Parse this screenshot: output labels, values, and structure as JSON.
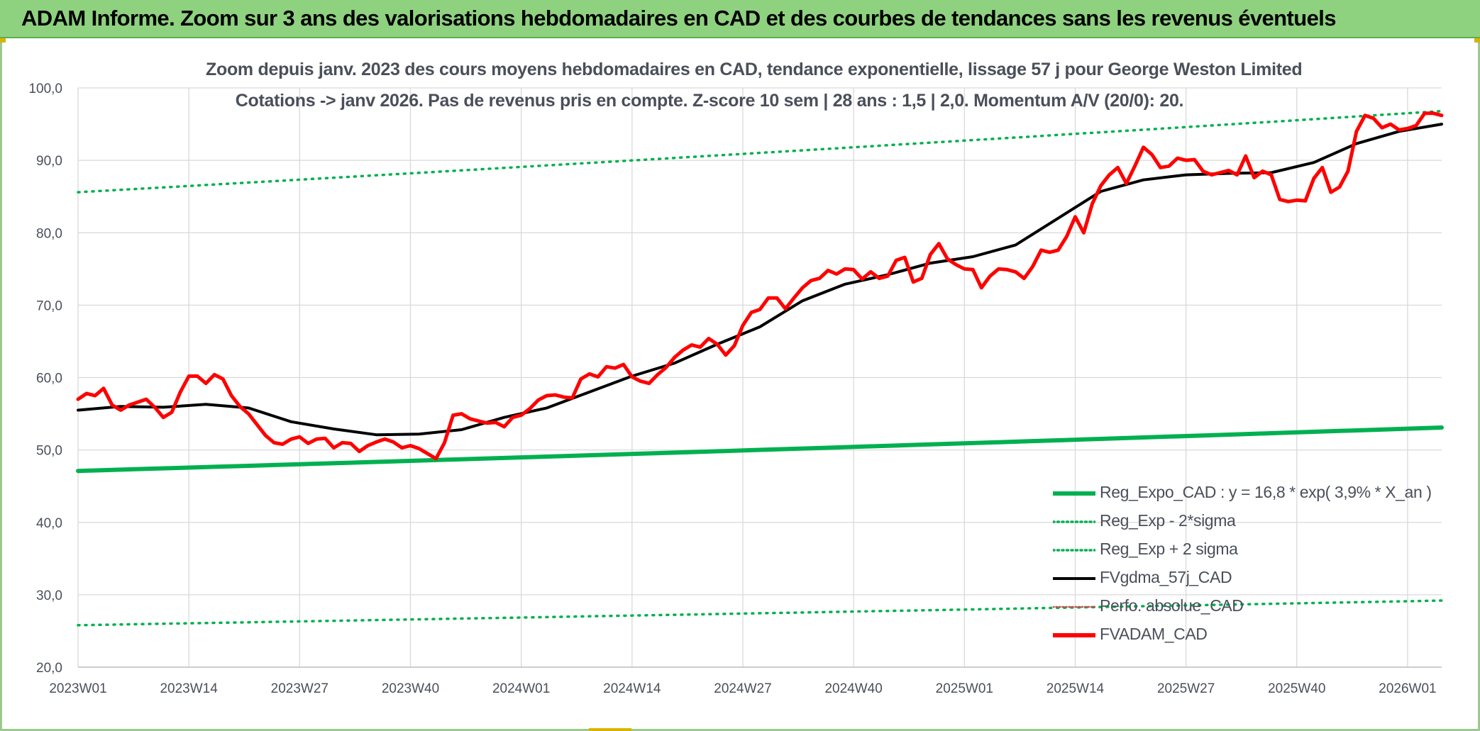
{
  "banner": {
    "title": "ADAM Informe. Zoom sur 3 ans des valorisations hebdomadaires en CAD et des courbes de tendances sans les revenus éventuels"
  },
  "colors": {
    "banner": "#8ed27f",
    "reg_expo": "#00b050",
    "sigma": "#00b050",
    "fvgdma": "#000000",
    "perfo": "#c0504d",
    "fvadam": "#ff0000",
    "grid": "#d9d9d9"
  },
  "chart_data": {
    "type": "line",
    "title": "Zoom depuis janv. 2023 des cours moyens hebdomadaires en CAD, tendance exponentielle, lissage 57 j pour George Weston Limited",
    "subtitle": "Cotations -> janv 2026. Pas de revenus pris en compte. Z-score 10 sem | 28 ans : 1,5 | 2,0. Momentum A/V (20/0): 20.",
    "xlabel": "",
    "ylabel": "",
    "ylim": [
      20,
      100
    ],
    "yticks": [
      "20,0",
      "30,0",
      "40,0",
      "50,0",
      "60,0",
      "70,0",
      "80,0",
      "90,0",
      "100,0"
    ],
    "x_range_weeks": [
      0,
      160
    ],
    "xticks": [
      "2023W01",
      "2023W14",
      "2023W27",
      "2023W40",
      "2024W01",
      "2024W14",
      "2024W27",
      "2024W40",
      "2025W01",
      "2025W14",
      "2025W27",
      "2025W40",
      "2026W01"
    ],
    "grid": true,
    "legend_position": "bottom-right",
    "series": [
      {
        "name": "Reg_Expo_CAD : y = 16,8 * exp( 3,9% *  X_an )",
        "style": "solid-thick",
        "x": [
          0,
          160
        ],
        "y": [
          47.1,
          53.1
        ]
      },
      {
        "name": "Reg_Exp - 2*sigma",
        "style": "dotted",
        "x": [
          0,
          160
        ],
        "y": [
          25.8,
          29.2
        ]
      },
      {
        "name": "Reg_Exp + 2 sigma",
        "style": "dotted",
        "x": [
          0,
          160
        ],
        "y": [
          85.6,
          96.8
        ]
      },
      {
        "name": "FVgdma_57j_CAD",
        "style": "solid",
        "x": [
          0,
          5,
          10,
          15,
          20,
          25,
          30,
          35,
          40,
          45,
          50,
          55,
          60,
          65,
          70,
          75,
          80,
          85,
          90,
          95,
          100,
          105,
          110,
          115,
          120,
          125,
          130,
          135,
          140,
          145,
          150,
          155,
          160
        ],
        "y": [
          55.5,
          56.0,
          55.9,
          56.3,
          55.8,
          53.9,
          52.9,
          52.1,
          52.2,
          52.8,
          54.5,
          55.8,
          58.0,
          60.2,
          62.0,
          64.6,
          67.0,
          70.6,
          72.9,
          74.2,
          75.8,
          76.7,
          78.3,
          82.0,
          85.7,
          87.3,
          88.0,
          88.2,
          88.3,
          89.7,
          92.3,
          94.0,
          95.0
        ]
      },
      {
        "name": "Perfo. absolue_CAD",
        "style": "dotted-thin",
        "x": [],
        "y": []
      },
      {
        "name": "FVADAM_CAD",
        "style": "solid-thick",
        "x": [
          0,
          1,
          2,
          3,
          4,
          5,
          6,
          7,
          8,
          9,
          10,
          11,
          12,
          13,
          14,
          15,
          16,
          17,
          18,
          19,
          20,
          21,
          22,
          23,
          24,
          25,
          26,
          27,
          28,
          29,
          30,
          31,
          32,
          33,
          34,
          35,
          36,
          37,
          38,
          39,
          40,
          41,
          42,
          43,
          44,
          45,
          46,
          47,
          48,
          49,
          50,
          51,
          52,
          53,
          54,
          55,
          56,
          57,
          58,
          59,
          60,
          61,
          62,
          63,
          64,
          65,
          66,
          67,
          68,
          69,
          70,
          71,
          72,
          73,
          74,
          75,
          76,
          77,
          78,
          79,
          80,
          81,
          82,
          83,
          84,
          85,
          86,
          87,
          88,
          89,
          90,
          91,
          92,
          93,
          94,
          95,
          96,
          97,
          98,
          99,
          100,
          101,
          102,
          103,
          104,
          105,
          106,
          107,
          108,
          109,
          110,
          111,
          112,
          113,
          114,
          115,
          116,
          117,
          118,
          119,
          120,
          121,
          122,
          123,
          124,
          125,
          126,
          127,
          128,
          129,
          130,
          131,
          132,
          133,
          134,
          135,
          136,
          137,
          138,
          139,
          140,
          141,
          142,
          143,
          144,
          145,
          146,
          147,
          148,
          149,
          150,
          151,
          152,
          153,
          154,
          155,
          156,
          157,
          158,
          159,
          160
        ],
        "y": [
          57.0,
          57.8,
          57.5,
          58.5,
          56.2,
          55.5,
          56.2,
          56.6,
          57.0,
          55.9,
          54.5,
          55.2,
          58.0,
          60.2,
          60.2,
          59.2,
          60.4,
          59.8,
          57.5,
          56.0,
          55.0,
          53.5,
          52.0,
          51.0,
          50.8,
          51.5,
          51.8,
          50.9,
          51.5,
          51.6,
          50.3,
          51.0,
          50.9,
          49.8,
          50.6,
          51.1,
          51.5,
          51.1,
          50.3,
          50.6,
          50.2,
          49.5,
          48.8,
          51.0,
          54.8,
          55.0,
          54.3,
          54.0,
          53.7,
          53.8,
          53.2,
          54.5,
          54.8,
          55.7,
          56.9,
          57.5,
          57.6,
          57.3,
          57.2,
          59.8,
          60.5,
          60.1,
          61.5,
          61.3,
          61.8,
          60.1,
          59.5,
          59.2,
          60.4,
          61.4,
          62.8,
          63.8,
          64.5,
          64.2,
          65.4,
          64.6,
          63.1,
          64.4,
          67.2,
          69.0,
          69.4,
          71.0,
          71.0,
          69.5,
          71.0,
          72.4,
          73.4,
          73.7,
          74.8,
          74.3,
          75.0,
          74.9,
          73.6,
          74.6,
          73.7,
          74.0,
          76.2,
          76.6,
          73.2,
          73.7,
          77.0,
          78.5,
          76.4,
          75.6,
          75.0,
          74.9,
          72.4,
          74.0,
          75.0,
          74.9,
          74.6,
          73.7,
          75.3,
          77.6,
          77.3,
          77.6,
          79.5,
          82.2,
          80.0,
          84.0,
          86.5,
          88.0,
          89.0,
          86.8,
          89.2,
          91.8,
          90.8,
          89.0,
          89.2,
          90.3,
          90.0,
          90.1,
          88.5,
          88.0,
          88.3,
          88.6,
          88.0,
          90.6,
          87.6,
          88.5,
          88.0,
          84.6,
          84.3,
          84.5,
          84.4,
          87.5,
          89.0,
          85.6,
          86.3,
          88.5,
          94.0,
          96.2,
          95.8,
          94.5,
          95.0,
          94.2,
          94.4,
          94.8,
          96.5,
          96.5,
          96.2
        ]
      }
    ]
  }
}
